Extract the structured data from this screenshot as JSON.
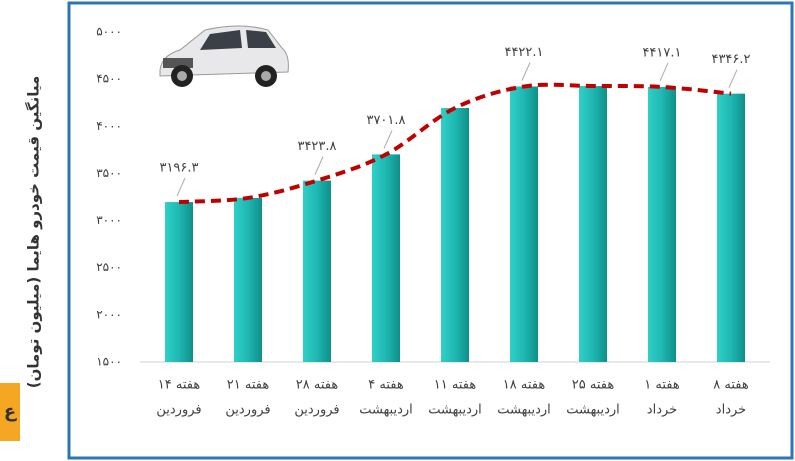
{
  "chart_data": {
    "type": "bar-trend",
    "y_axis_label": "میانگین قیمت خودرو هایما (میلیون تومان)",
    "badge": "ع",
    "categories": [
      [
        "هفته ۱۴",
        "فروردین"
      ],
      [
        "هفته ۲۱",
        "فروردین"
      ],
      [
        "هفته ۲۸",
        "فروردین"
      ],
      [
        "هفته ۴",
        "اردیبهشت"
      ],
      [
        "هفته ۱۱",
        "اردیبهشت"
      ],
      [
        "هفته ۱۸",
        "اردیبهشت"
      ],
      [
        "هفته ۲۵",
        "اردیبهشت"
      ],
      [
        "هفته ۱",
        "خرداد"
      ],
      [
        "هفته ۸",
        "خرداد"
      ]
    ],
    "series": [
      {
        "color": "#1fb7b1",
        "line_color": "#c00000",
        "values": [
          3196.3,
          3240,
          3423.8,
          3701.8,
          4194,
          4422.1,
          4427,
          4417.1,
          4346.2
        ],
        "value_labels": [
          "۳۱۹۶.۳",
          null,
          "۳۴۲۳.۸",
          "۳۷۰۱.۸",
          null,
          "۴۴۲۲.۱",
          null,
          "۴۴۱۷.۱",
          "۴۳۴۶.۲"
        ]
      }
    ],
    "ylim": [
      1500,
      5000
    ],
    "yticks": [
      {
        "value": 1500,
        "label": "۱۵۰۰"
      },
      {
        "value": 2000,
        "label": "۲۰۰۰"
      },
      {
        "value": 2500,
        "label": "۲۵۰۰"
      },
      {
        "value": 3000,
        "label": "۳۰۰۰"
      },
      {
        "value": 3500,
        "label": "۳۵۰۰"
      },
      {
        "value": 4000,
        "label": "۴۰۰۰"
      },
      {
        "value": 4500,
        "label": "۴۵۰۰"
      },
      {
        "value": 5000,
        "label": "۵۰۰۰"
      }
    ],
    "grid": false
  }
}
